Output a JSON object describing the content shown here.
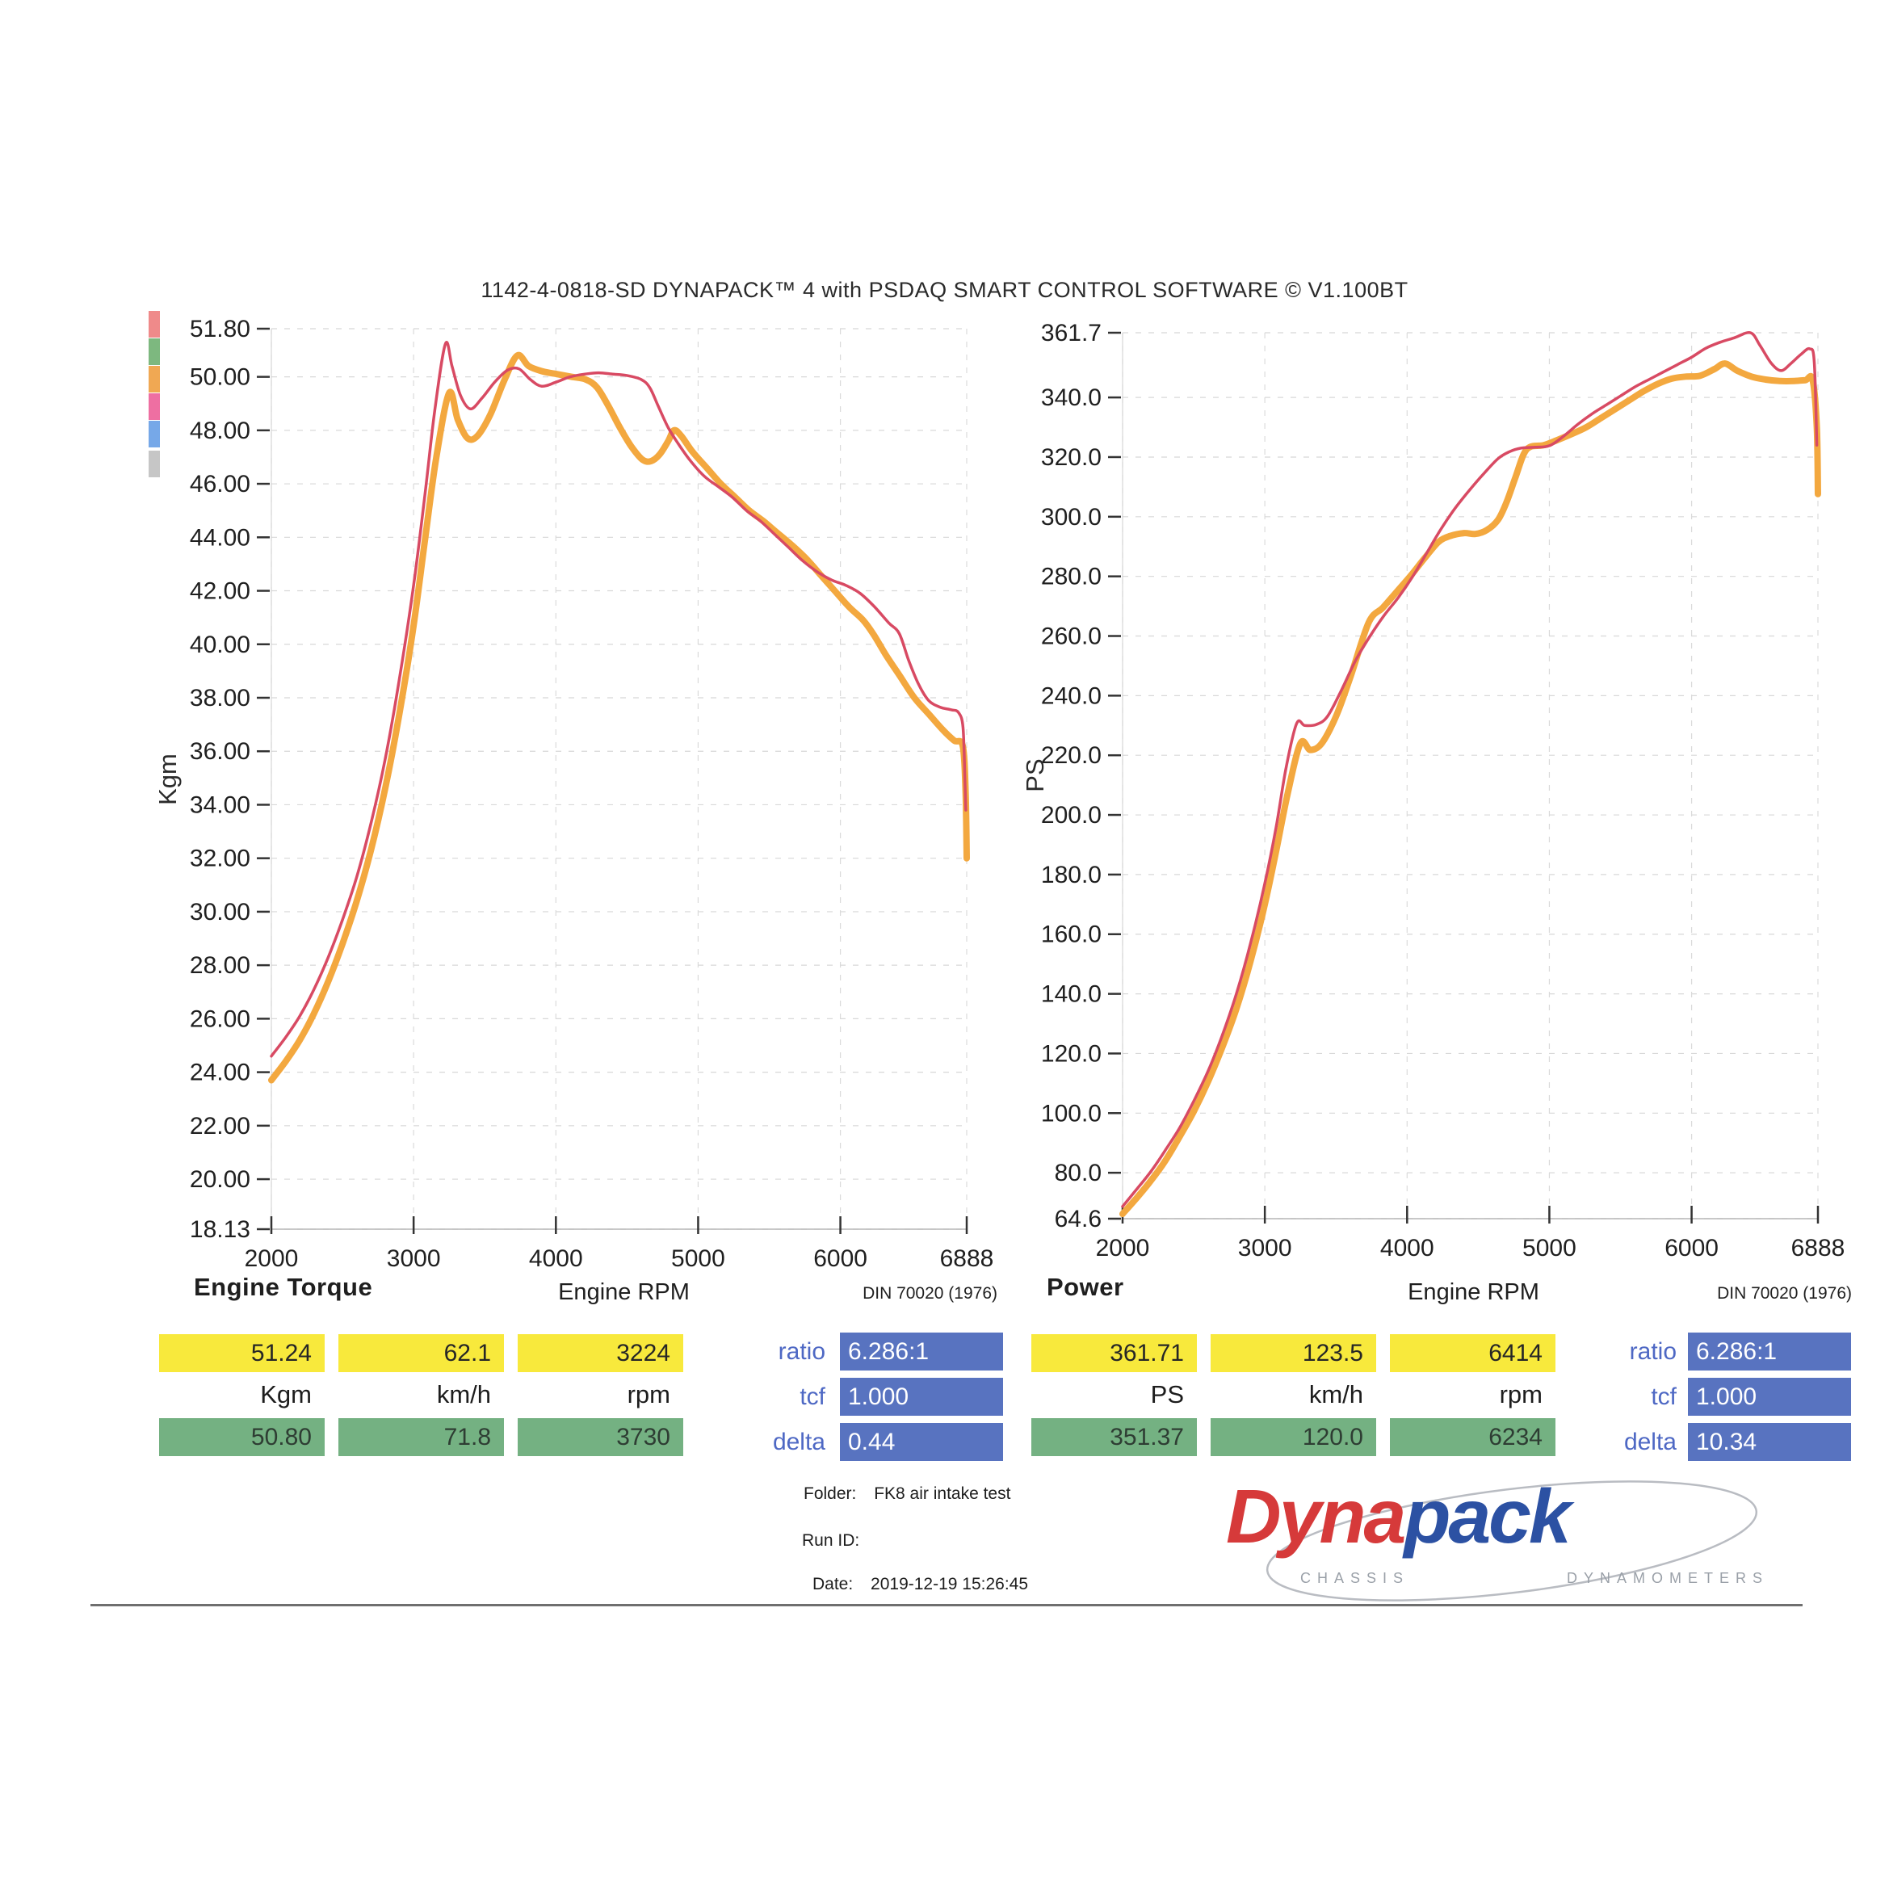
{
  "title": "1142-4-0818-SD DYNAPACK™ 4 with PSDAQ SMART CONTROL SOFTWARE © V1.100BT",
  "chart_data": [
    {
      "type": "line",
      "title": "Engine Torque",
      "xlabel": "Engine RPM",
      "ylabel": "Kgm",
      "standard": "DIN 70020 (1976)",
      "xlim": [
        2000,
        6888
      ],
      "ylim": [
        18.13,
        51.8
      ],
      "x_ticks": [
        "2000",
        "3000",
        "4000",
        "5000",
        "6000",
        "6888"
      ],
      "y_ticks": [
        "51.80",
        "50.00",
        "48.00",
        "46.00",
        "44.00",
        "42.00",
        "40.00",
        "38.00",
        "36.00",
        "34.00",
        "32.00",
        "30.00",
        "28.00",
        "26.00",
        "24.00",
        "22.00",
        "20.00",
        "18.13"
      ],
      "grid": "on",
      "series": [
        {
          "name": "orange-run",
          "color": "#f3a83f",
          "width": 8,
          "peak": {
            "value": 50.8,
            "speed_kmh": 71.8,
            "rpm": 3730
          },
          "points": [
            [
              2000,
              23.7
            ],
            [
              2100,
              24.4
            ],
            [
              2200,
              25.2
            ],
            [
              2300,
              26.2
            ],
            [
              2400,
              27.4
            ],
            [
              2500,
              28.8
            ],
            [
              2600,
              30.4
            ],
            [
              2700,
              32.3
            ],
            [
              2800,
              34.6
            ],
            [
              2900,
              37.4
            ],
            [
              3000,
              40.7
            ],
            [
              3080,
              43.9
            ],
            [
              3160,
              47.0
            ],
            [
              3250,
              49.4
            ],
            [
              3310,
              48.4
            ],
            [
              3380,
              47.7
            ],
            [
              3450,
              47.8
            ],
            [
              3540,
              48.6
            ],
            [
              3640,
              49.9
            ],
            [
              3730,
              50.8
            ],
            [
              3810,
              50.4
            ],
            [
              3910,
              50.2
            ],
            [
              4010,
              50.1
            ],
            [
              4110,
              50.0
            ],
            [
              4210,
              49.9
            ],
            [
              4290,
              49.6
            ],
            [
              4370,
              48.9
            ],
            [
              4450,
              48.1
            ],
            [
              4530,
              47.4
            ],
            [
              4610,
              46.9
            ],
            [
              4670,
              46.85
            ],
            [
              4730,
              47.1
            ],
            [
              4790,
              47.6
            ],
            [
              4830,
              48.0
            ],
            [
              4880,
              47.8
            ],
            [
              4960,
              47.2
            ],
            [
              5060,
              46.6
            ],
            [
              5160,
              46.0
            ],
            [
              5260,
              45.5
            ],
            [
              5360,
              45.0
            ],
            [
              5460,
              44.6
            ],
            [
              5560,
              44.15
            ],
            [
              5660,
              43.7
            ],
            [
              5760,
              43.2
            ],
            [
              5860,
              42.6
            ],
            [
              5960,
              42.0
            ],
            [
              6060,
              41.4
            ],
            [
              6160,
              40.9
            ],
            [
              6234,
              40.36
            ],
            [
              6320,
              39.6
            ],
            [
              6420,
              38.8
            ],
            [
              6520,
              38.0
            ],
            [
              6620,
              37.4
            ],
            [
              6720,
              36.8
            ],
            [
              6800,
              36.4
            ],
            [
              6860,
              36.2
            ],
            [
              6880,
              34.5
            ],
            [
              6888,
              32.0
            ]
          ]
        },
        {
          "name": "red-run",
          "color": "#d84a63",
          "width": 3.5,
          "peak": {
            "value": 51.24,
            "speed_kmh": 62.1,
            "rpm": 3224
          },
          "points": [
            [
              2000,
              24.6
            ],
            [
              2100,
              25.3
            ],
            [
              2200,
              26.1
            ],
            [
              2300,
              27.1
            ],
            [
              2400,
              28.3
            ],
            [
              2500,
              29.7
            ],
            [
              2600,
              31.3
            ],
            [
              2700,
              33.3
            ],
            [
              2800,
              35.7
            ],
            [
              2900,
              38.7
            ],
            [
              3000,
              42.2
            ],
            [
              3080,
              45.6
            ],
            [
              3150,
              48.8
            ],
            [
              3224,
              51.24
            ],
            [
              3270,
              50.4
            ],
            [
              3330,
              49.3
            ],
            [
              3400,
              48.8
            ],
            [
              3480,
              49.2
            ],
            [
              3570,
              49.8
            ],
            [
              3660,
              50.25
            ],
            [
              3740,
              50.3
            ],
            [
              3820,
              49.9
            ],
            [
              3900,
              49.65
            ],
            [
              4000,
              49.8
            ],
            [
              4100,
              50.0
            ],
            [
              4200,
              50.1
            ],
            [
              4300,
              50.15
            ],
            [
              4400,
              50.1
            ],
            [
              4500,
              50.05
            ],
            [
              4600,
              49.9
            ],
            [
              4660,
              49.6
            ],
            [
              4720,
              48.9
            ],
            [
              4790,
              48.1
            ],
            [
              4860,
              47.5
            ],
            [
              4940,
              46.9
            ],
            [
              5040,
              46.3
            ],
            [
              5140,
              45.9
            ],
            [
              5240,
              45.5
            ],
            [
              5340,
              45.0
            ],
            [
              5440,
              44.6
            ],
            [
              5540,
              44.1
            ],
            [
              5640,
              43.6
            ],
            [
              5740,
              43.1
            ],
            [
              5840,
              42.7
            ],
            [
              5940,
              42.4
            ],
            [
              6040,
              42.2
            ],
            [
              6140,
              41.9
            ],
            [
              6240,
              41.4
            ],
            [
              6340,
              40.8
            ],
            [
              6414,
              40.4
            ],
            [
              6480,
              39.4
            ],
            [
              6550,
              38.5
            ],
            [
              6620,
              37.9
            ],
            [
              6700,
              37.65
            ],
            [
              6780,
              37.55
            ],
            [
              6830,
              37.45
            ],
            [
              6862,
              36.9
            ],
            [
              6875,
              35.0
            ],
            [
              6882,
              33.8
            ]
          ]
        }
      ]
    },
    {
      "type": "line",
      "title": "Power",
      "xlabel": "Engine RPM",
      "ylabel": "PS",
      "standard": "DIN 70020 (1976)",
      "xlim": [
        2000,
        6888
      ],
      "ylim": [
        64.6,
        361.7
      ],
      "x_ticks": [
        "2000",
        "3000",
        "4000",
        "5000",
        "6000",
        "6888"
      ],
      "y_ticks": [
        "361.7",
        "340.0",
        "320.0",
        "300.0",
        "280.0",
        "260.0",
        "240.0",
        "220.0",
        "200.0",
        "180.0",
        "160.0",
        "140.0",
        "120.0",
        "100.0",
        "80.0",
        "64.6"
      ],
      "grid": "on",
      "series": [
        {
          "name": "orange-run",
          "color": "#f3a83f",
          "width": 8,
          "peak": {
            "value": 351.37,
            "speed_kmh": 120.0,
            "rpm": 6234
          },
          "points": [
            [
              2000,
              66.2
            ],
            [
              2100,
              71.6
            ],
            [
              2200,
              77.4
            ],
            [
              2300,
              84
            ],
            [
              2400,
              92
            ],
            [
              2500,
              100.5
            ],
            [
              2600,
              110.5
            ],
            [
              2700,
              122
            ],
            [
              2800,
              135
            ],
            [
              2900,
              151
            ],
            [
              3000,
              170
            ],
            [
              3080,
              188
            ],
            [
              3160,
              207
            ],
            [
              3250,
              224
            ],
            [
              3320,
              221.8
            ],
            [
              3400,
              224
            ],
            [
              3500,
              233
            ],
            [
              3600,
              246
            ],
            [
              3730,
              264.5
            ],
            [
              3830,
              269.5
            ],
            [
              3930,
              275
            ],
            [
              4030,
              280.5
            ],
            [
              4130,
              286.5
            ],
            [
              4220,
              291.5
            ],
            [
              4300,
              293.5
            ],
            [
              4400,
              294.5
            ],
            [
              4480,
              294.2
            ],
            [
              4560,
              295.5
            ],
            [
              4640,
              299
            ],
            [
              4700,
              305
            ],
            [
              4760,
              313
            ],
            [
              4820,
              321
            ],
            [
              4870,
              323.5
            ],
            [
              4960,
              324
            ],
            [
              5060,
              325.8
            ],
            [
              5160,
              327.8
            ],
            [
              5260,
              330
            ],
            [
              5360,
              333
            ],
            [
              5460,
              336
            ],
            [
              5560,
              339
            ],
            [
              5660,
              342
            ],
            [
              5760,
              344.5
            ],
            [
              5860,
              346.3
            ],
            [
              5960,
              347
            ],
            [
              6060,
              347.3
            ],
            [
              6160,
              349.5
            ],
            [
              6234,
              351.37
            ],
            [
              6320,
              349
            ],
            [
              6420,
              347
            ],
            [
              6520,
              346
            ],
            [
              6620,
              345.5
            ],
            [
              6720,
              345.5
            ],
            [
              6800,
              345.8
            ],
            [
              6850,
              346
            ],
            [
              6880,
              330
            ],
            [
              6888,
              307.6
            ]
          ]
        },
        {
          "name": "red-run",
          "color": "#d84a63",
          "width": 3.5,
          "peak": {
            "value": 361.71,
            "speed_kmh": 123.5,
            "rpm": 6414
          },
          "points": [
            [
              2000,
              68.7
            ],
            [
              2100,
              74.5
            ],
            [
              2200,
              80.5
            ],
            [
              2300,
              87.5
            ],
            [
              2400,
              95
            ],
            [
              2500,
              104
            ],
            [
              2600,
              114
            ],
            [
              2700,
              126
            ],
            [
              2800,
              140
            ],
            [
              2900,
              157
            ],
            [
              3000,
              177
            ],
            [
              3080,
              196
            ],
            [
              3150,
              216
            ],
            [
              3224,
              230.7
            ],
            [
              3280,
              230
            ],
            [
              3360,
              230.3
            ],
            [
              3440,
              233
            ],
            [
              3540,
              242
            ],
            [
              3640,
              252
            ],
            [
              3740,
              260
            ],
            [
              3840,
              267
            ],
            [
              3940,
              273
            ],
            [
              4040,
              280
            ],
            [
              4140,
              288
            ],
            [
              4240,
              296
            ],
            [
              4340,
              303
            ],
            [
              4440,
              309
            ],
            [
              4540,
              314.5
            ],
            [
              4640,
              319.5
            ],
            [
              4720,
              321.8
            ],
            [
              4800,
              323
            ],
            [
              4900,
              323.3
            ],
            [
              5000,
              323.8
            ],
            [
              5100,
              327
            ],
            [
              5200,
              331
            ],
            [
              5300,
              334.5
            ],
            [
              5400,
              337.5
            ],
            [
              5500,
              340.5
            ],
            [
              5600,
              343.5
            ],
            [
              5700,
              346
            ],
            [
              5800,
              348.5
            ],
            [
              5900,
              351
            ],
            [
              6000,
              353.5
            ],
            [
              6100,
              356.5
            ],
            [
              6200,
              358.5
            ],
            [
              6300,
              360
            ],
            [
              6414,
              361.71
            ],
            [
              6480,
              357.5
            ],
            [
              6560,
              351.5
            ],
            [
              6630,
              349
            ],
            [
              6700,
              351.5
            ],
            [
              6770,
              354.5
            ],
            [
              6830,
              356.3
            ],
            [
              6862,
              352
            ],
            [
              6880,
              324
            ]
          ]
        }
      ]
    }
  ],
  "legend_colors": [
    "#ef8a8a",
    "#7db87f",
    "#f0a853",
    "#ee6fa2",
    "#76a8e8",
    "#c6c6c6"
  ],
  "tables": {
    "left": {
      "peak_row": [
        "51.24",
        "62.1",
        "3224"
      ],
      "units_row": [
        "Kgm",
        "km/h",
        "rpm"
      ],
      "second_row": [
        "50.80",
        "71.8",
        "3730"
      ],
      "params": [
        {
          "label": "ratio",
          "value": "6.286:1"
        },
        {
          "label": "tcf",
          "value": "1.000"
        },
        {
          "label": "delta",
          "value": "0.44"
        }
      ]
    },
    "right": {
      "peak_row": [
        "361.71",
        "123.5",
        "6414"
      ],
      "units_row": [
        "PS",
        "km/h",
        "rpm"
      ],
      "second_row": [
        "351.37",
        "120.0",
        "6234"
      ],
      "params": [
        {
          "label": "ratio",
          "value": "6.286:1"
        },
        {
          "label": "tcf",
          "value": "1.000"
        },
        {
          "label": "delta",
          "value": "10.34"
        }
      ]
    }
  },
  "footer": {
    "folder_label": "Folder:",
    "folder_value": "FK8 air intake test",
    "run_id_label": "Run ID:",
    "run_id_value": "",
    "date_label": "Date:",
    "date_value": "2019-12-19 15:26:45"
  },
  "logo": {
    "word_part1": "Dyna",
    "word_part2": "pack",
    "caption_part1": "CHASSIS",
    "caption_part2": "DYNAMOMETERS"
  },
  "colors": {
    "red_run": "#d84a63",
    "orange_run": "#f3a83f",
    "yellow_cell": "#f8e93c",
    "green_cell": "#74b182",
    "blue_box": "#5873c0",
    "blue_label_text": "#4e68c4"
  }
}
